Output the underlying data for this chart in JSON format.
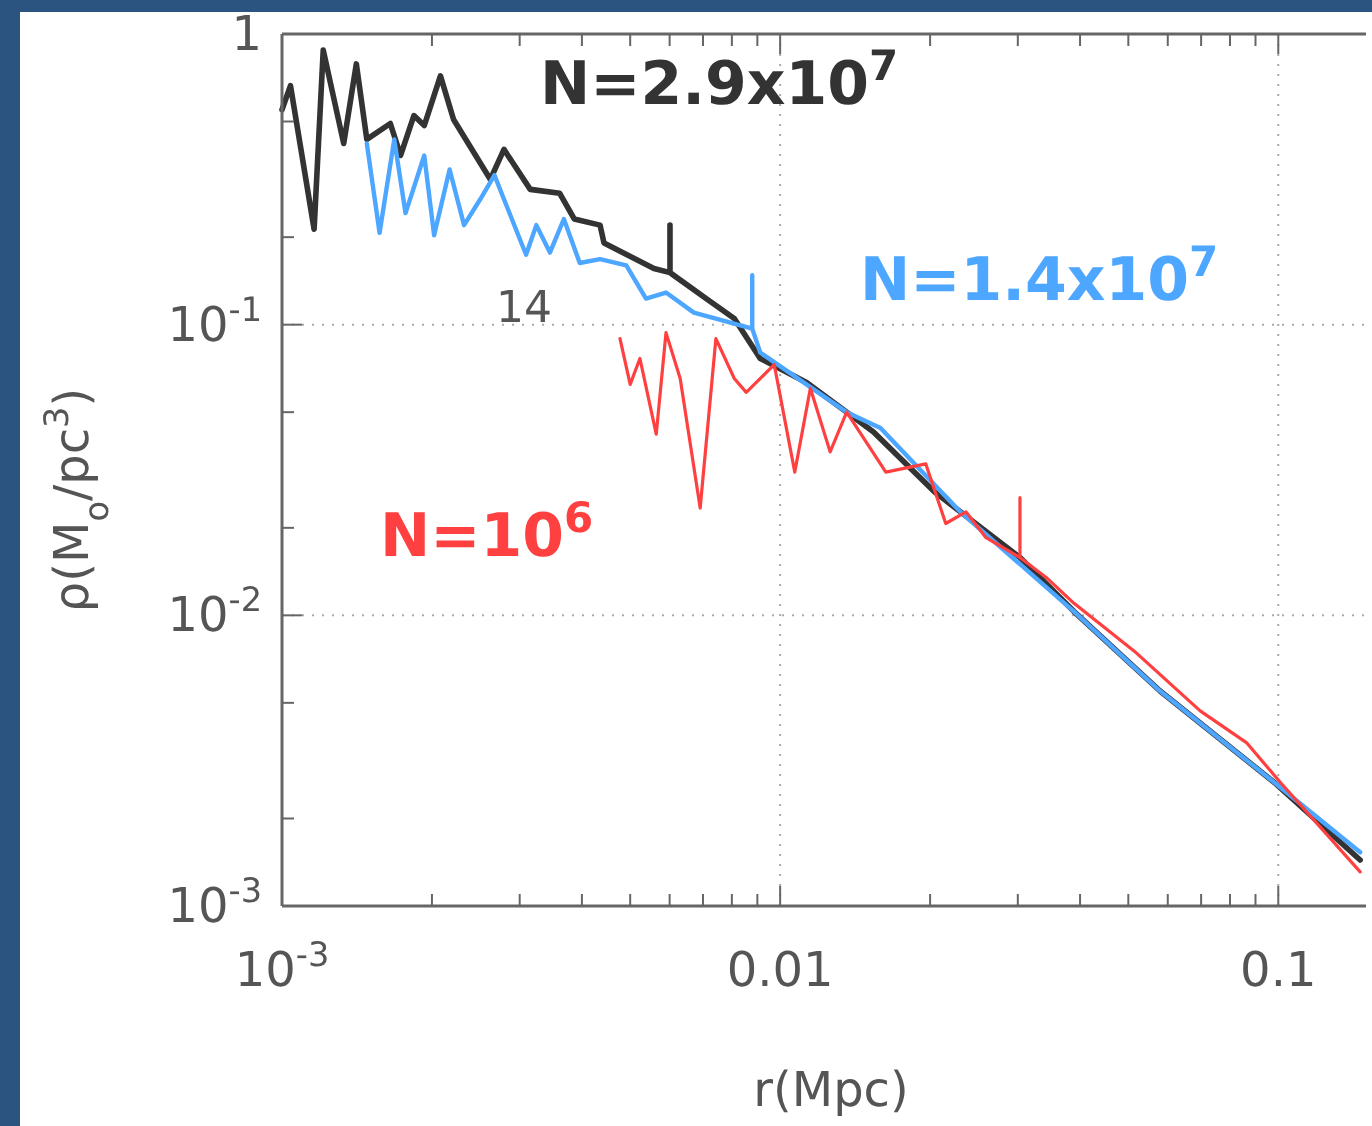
{
  "chart_data": {
    "type": "line",
    "xlabel": "r(Mpc)",
    "ylabel": "ρ(M$_{o}$/pc$^{3}$)",
    "log": "xy",
    "grid": true,
    "line_style": "solid",
    "xlim": [
      0.001,
      0.15
    ],
    "ylim": [
      0.001,
      1
    ],
    "xticks": [
      {
        "value": 0.001,
        "label": "10$^{-3}$"
      },
      {
        "value": 0.002,
        "label": null
      },
      {
        "value": 0.003,
        "label": null
      },
      {
        "value": 0.004,
        "label": null
      },
      {
        "value": 0.005,
        "label": null
      },
      {
        "value": 0.006,
        "label": null
      },
      {
        "value": 0.007,
        "label": null
      },
      {
        "value": 0.008,
        "label": null
      },
      {
        "value": 0.009,
        "label": null
      },
      0.01,
      {
        "value": 0.02,
        "label": null
      },
      {
        "value": 0.03,
        "label": null
      },
      {
        "value": 0.04,
        "label": null
      },
      {
        "value": 0.05,
        "label": null
      },
      {
        "value": 0.06,
        "label": null
      },
      {
        "value": 0.07,
        "label": null
      },
      {
        "value": 0.08,
        "label": null
      },
      {
        "value": 0.09,
        "label": null
      },
      0.1
    ],
    "yticks": [
      {
        "value": 0.001,
        "label": "10$^{-3}$"
      },
      {
        "value": 0.002,
        "label": null
      },
      {
        "value": 0.005,
        "label": null
      },
      {
        "value": 0.01,
        "label": "10$^{-2}$"
      },
      {
        "value": 0.02,
        "label": null
      },
      {
        "value": 0.05,
        "label": null
      },
      {
        "value": 0.1,
        "label": "10$^{-1}$"
      },
      {
        "value": 0.2,
        "label": null
      },
      {
        "value": 0.5,
        "label": null
      },
      1
    ],
    "annotations": [
      "14"
    ],
    "series": [
      {
        "name": "N=2.9x10$^{7}$",
        "color": "#333333",
        "x": [
          0.001,
          0.00104,
          0.00116,
          0.00121,
          0.00133,
          0.00141,
          0.00148,
          0.00165,
          0.00173,
          0.00184,
          0.00193,
          0.00208,
          0.00221,
          0.00262,
          0.00279,
          0.00315,
          0.00361,
          0.00386,
          0.00435,
          0.00443,
          0.00558,
          0.00601,
          0.00601,
          0.00601,
          0.0071,
          0.00809,
          0.00912,
          0.0113,
          0.0154,
          0.0204,
          0.0303,
          0.0389,
          0.0579,
          0.0982,
          0.146
        ],
        "values": [
          0.549,
          0.664,
          0.213,
          0.881,
          0.42,
          0.789,
          0.434,
          0.492,
          0.382,
          0.524,
          0.484,
          0.718,
          0.508,
          0.316,
          0.401,
          0.292,
          0.283,
          0.231,
          0.22,
          0.191,
          0.156,
          0.151,
          0.22,
          0.151,
          0.123,
          0.105,
          0.0765,
          0.0633,
          0.0427,
          0.0266,
          0.0158,
          0.0103,
          0.00549,
          0.00266,
          0.00144
        ]
      },
      {
        "name": "N=1.4x10$^{7}$",
        "color": "#4da6ff",
        "x": [
          0.00148,
          0.00157,
          0.00168,
          0.00177,
          0.00193,
          0.00202,
          0.00217,
          0.00232,
          0.0025,
          0.00267,
          0.00279,
          0.00309,
          0.00324,
          0.00345,
          0.00368,
          0.00396,
          0.00435,
          0.00491,
          0.00538,
          0.0059,
          0.00671,
          0.00743,
          0.00879,
          0.00879,
          0.00879,
          0.00912,
          0.0136,
          0.0159,
          0.023,
          0.0389,
          0.0579,
          0.0982,
          0.146
        ],
        "values": [
          0.42,
          0.207,
          0.434,
          0.242,
          0.382,
          0.203,
          0.342,
          0.22,
          0.27,
          0.327,
          0.27,
          0.174,
          0.22,
          0.177,
          0.231,
          0.163,
          0.168,
          0.16,
          0.123,
          0.129,
          0.11,
          0.105,
          0.0969,
          0.148,
          0.0969,
          0.0802,
          0.05,
          0.0441,
          0.0227,
          0.0103,
          0.00549,
          0.00266,
          0.00153
        ]
      },
      {
        "name": "N=10$^{6}$",
        "color": "#ff4040",
        "x": [
          0.00477,
          0.005,
          0.00523,
          0.00564,
          0.0059,
          0.0063,
          0.00691,
          0.00743,
          0.00809,
          0.00855,
          0.00973,
          0.0107,
          0.0115,
          0.0126,
          0.0136,
          0.0163,
          0.0196,
          0.0215,
          0.0236,
          0.0259,
          0.0303,
          0.0303,
          0.0303,
          0.0342,
          0.0389,
          0.0514,
          0.0697,
          0.0863,
          0.101,
          0.146
        ],
        "values": [
          0.0895,
          0.0623,
          0.0765,
          0.042,
          0.0939,
          0.0653,
          0.0234,
          0.0895,
          0.0653,
          0.0585,
          0.0729,
          0.0311,
          0.0604,
          0.0365,
          0.05,
          0.0311,
          0.0332,
          0.0207,
          0.0227,
          0.0185,
          0.0158,
          0.0254,
          0.0158,
          0.0135,
          0.011,
          0.00753,
          0.00469,
          0.00365,
          0.00266,
          0.00131
        ]
      }
    ]
  }
}
